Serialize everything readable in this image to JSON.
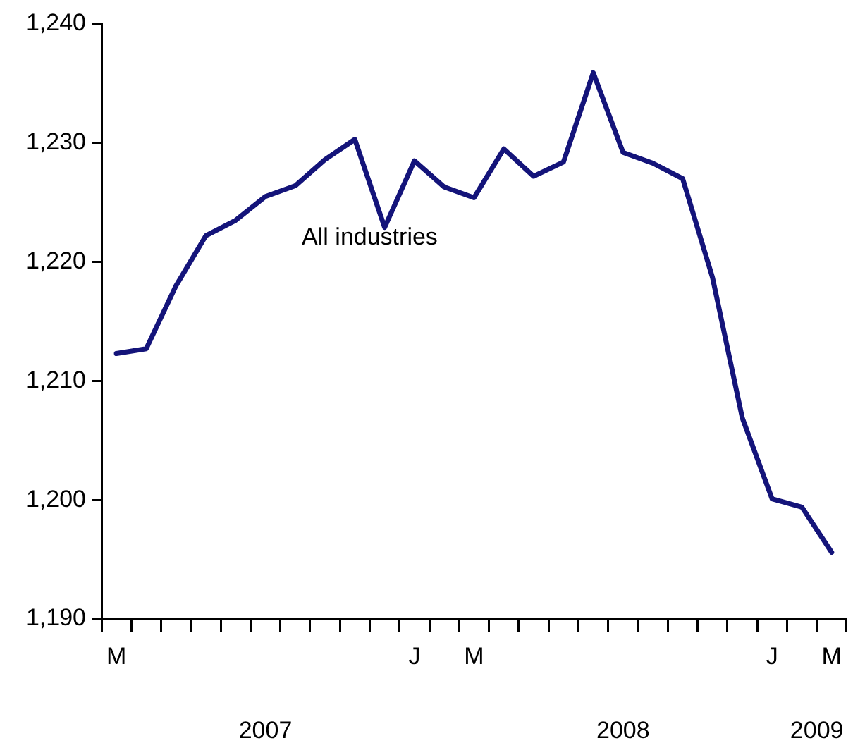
{
  "chart_data": {
    "type": "line",
    "categories": [
      "M",
      null,
      null,
      null,
      null,
      null,
      null,
      null,
      null,
      null,
      "J",
      null,
      "M",
      null,
      null,
      null,
      null,
      null,
      null,
      null,
      null,
      null,
      "J",
      null,
      "M"
    ],
    "series": [
      {
        "name": "All industries",
        "color": "#14147a",
        "values": [
          1212.3,
          1212.7,
          1218.0,
          1222.2,
          1223.5,
          1225.5,
          1226.4,
          1228.6,
          1230.3,
          1222.9,
          1228.5,
          1226.3,
          1225.4,
          1229.5,
          1227.2,
          1228.4,
          1235.9,
          1229.2,
          1228.3,
          1227.0,
          1218.7,
          1206.9,
          1200.1,
          1199.4,
          1195.6
        ]
      }
    ],
    "ylim": [
      1190,
      1240
    ],
    "yticks": [
      {
        "value": 1190,
        "label": "1,190"
      },
      {
        "value": 1200,
        "label": "1,200"
      },
      {
        "value": 1210,
        "label": "1,210"
      },
      {
        "value": 1220,
        "label": "1,220"
      },
      {
        "value": 1230,
        "label": "1,230"
      },
      {
        "value": 1240,
        "label": "1,240"
      }
    ],
    "annotations": [
      "2007",
      "2008",
      "2009"
    ],
    "grid": false,
    "legend": false,
    "marker": "none",
    "line_style": "solid"
  }
}
